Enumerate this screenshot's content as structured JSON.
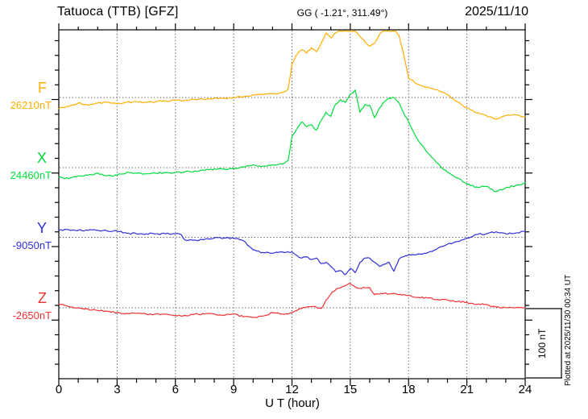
{
  "header": {
    "title": "Tatuoca (TTB)  [GFZ]",
    "coords": "GG ( -1.21°, 311.49°)",
    "date": "2025/11/10"
  },
  "x_axis": {
    "label": "U T (hour)"
  },
  "scale_bar": {
    "label": "100 nT",
    "span_nT": 100
  },
  "plotted_at": "Plotted at 2025/11/30 00:34 UT",
  "chart_data": {
    "type": "line",
    "title": "Tatuoca (TTB) [GFZ] magnetogram 2025/11/10",
    "xlabel": "U T (hour)",
    "x_range": [
      0,
      24
    ],
    "x_ticks": [
      {
        "t": 0,
        "label": "0"
      },
      {
        "t": 3,
        "label": "3"
      },
      {
        "t": 6,
        "label": "6"
      },
      {
        "t": 9,
        "label": "9"
      },
      {
        "t": 12,
        "label": "12"
      },
      {
        "t": 15,
        "label": "15"
      },
      {
        "t": 18,
        "label": "18"
      },
      {
        "t": 21,
        "label": "21"
      },
      {
        "t": 24,
        "label": "24"
      }
    ],
    "grid": "dotted vertical lines every 3 h; dotted horizontal line at each series baseline",
    "legend_position": "left margin, one colored letter + baseline value per trace",
    "scale_bar_nT": 100,
    "series": [
      {
        "name": "F",
        "color": "#FFAD00",
        "baseline_nT": 26210,
        "baseline_label": "26210nT",
        "points": [
          [
            0,
            26194
          ],
          [
            0.5,
            26197
          ],
          [
            1,
            26202
          ],
          [
            1.5,
            26199
          ],
          [
            2,
            26202
          ],
          [
            2.5,
            26203
          ],
          [
            3,
            26201
          ],
          [
            3.5,
            26203
          ],
          [
            4,
            26204
          ],
          [
            4.5,
            26203
          ],
          [
            5,
            26204
          ],
          [
            5.5,
            26205
          ],
          [
            6,
            26206
          ],
          [
            6.5,
            26206
          ],
          [
            7,
            26207
          ],
          [
            7.5,
            26207
          ],
          [
            8,
            26209
          ],
          [
            8.5,
            26209
          ],
          [
            9,
            26210
          ],
          [
            9.5,
            26211
          ],
          [
            10,
            26214
          ],
          [
            10.5,
            26214
          ],
          [
            11,
            26215
          ],
          [
            11.5,
            26217
          ],
          [
            11.8,
            26222
          ],
          [
            12,
            26258
          ],
          [
            12.25,
            26272
          ],
          [
            12.5,
            26279
          ],
          [
            12.75,
            26274
          ],
          [
            13,
            26282
          ],
          [
            13.25,
            26276
          ],
          [
            13.5,
            26288
          ],
          [
            13.75,
            26303
          ],
          [
            14,
            26296
          ],
          [
            14.25,
            26303
          ],
          [
            14.5,
            26309
          ],
          [
            14.75,
            26312
          ],
          [
            15,
            26314
          ],
          [
            15.25,
            26308
          ],
          [
            15.5,
            26298
          ],
          [
            15.75,
            26291
          ],
          [
            16,
            26284
          ],
          [
            16.25,
            26288
          ],
          [
            16.5,
            26301
          ],
          [
            16.75,
            26307
          ],
          [
            17,
            26311
          ],
          [
            17.25,
            26309
          ],
          [
            17.5,
            26300
          ],
          [
            17.75,
            26272
          ],
          [
            18,
            26238
          ],
          [
            18.5,
            26229
          ],
          [
            19,
            26225
          ],
          [
            19.5,
            26221
          ],
          [
            20,
            26214
          ],
          [
            20.5,
            26204
          ],
          [
            21,
            26195
          ],
          [
            21.5,
            26188
          ],
          [
            22,
            26184
          ],
          [
            22.5,
            26179
          ],
          [
            23,
            26184
          ],
          [
            23.5,
            26185
          ],
          [
            24,
            26182
          ]
        ]
      },
      {
        "name": "X",
        "color": "#00DC3C",
        "baseline_nT": 24460,
        "baseline_label": "24460nT",
        "points": [
          [
            0,
            24446
          ],
          [
            0.5,
            24444
          ],
          [
            1,
            24448
          ],
          [
            1.5,
            24449
          ],
          [
            2,
            24452
          ],
          [
            2.5,
            24448
          ],
          [
            3,
            24449
          ],
          [
            3.5,
            24453
          ],
          [
            4,
            24452
          ],
          [
            4.5,
            24451
          ],
          [
            5,
            24452
          ],
          [
            5.5,
            24453
          ],
          [
            6,
            24453
          ],
          [
            6.5,
            24454
          ],
          [
            7,
            24455
          ],
          [
            7.5,
            24456
          ],
          [
            8,
            24458
          ],
          [
            8.5,
            24458
          ],
          [
            9,
            24459
          ],
          [
            9.5,
            24461
          ],
          [
            10,
            24464
          ],
          [
            10.5,
            24462
          ],
          [
            11,
            24464
          ],
          [
            11.5,
            24465
          ],
          [
            11.8,
            24470
          ],
          [
            12,
            24505
          ],
          [
            12.25,
            24516
          ],
          [
            12.5,
            24526
          ],
          [
            12.75,
            24519
          ],
          [
            13,
            24522
          ],
          [
            13.25,
            24514
          ],
          [
            13.5,
            24528
          ],
          [
            13.75,
            24540
          ],
          [
            14,
            24534
          ],
          [
            14.25,
            24552
          ],
          [
            14.5,
            24558
          ],
          [
            14.75,
            24554
          ],
          [
            15,
            24566
          ],
          [
            15.25,
            24572
          ],
          [
            15.5,
            24540
          ],
          [
            15.75,
            24551
          ],
          [
            16,
            24550
          ],
          [
            16.25,
            24532
          ],
          [
            16.5,
            24546
          ],
          [
            16.75,
            24555
          ],
          [
            17,
            24560
          ],
          [
            17.25,
            24561
          ],
          [
            17.5,
            24554
          ],
          [
            17.75,
            24539
          ],
          [
            18,
            24526
          ],
          [
            18.5,
            24499
          ],
          [
            19,
            24481
          ],
          [
            19.5,
            24466
          ],
          [
            20,
            24453
          ],
          [
            20.5,
            24445
          ],
          [
            21,
            24436
          ],
          [
            21.5,
            24432
          ],
          [
            22,
            24433
          ],
          [
            22.5,
            24425
          ],
          [
            23,
            24431
          ],
          [
            23.5,
            24434
          ],
          [
            24,
            24438
          ]
        ]
      },
      {
        "name": "Y",
        "color": "#2E2EDC",
        "baseline_nT": -9050,
        "baseline_label": "-9050nT",
        "points": [
          [
            0,
            -9040
          ],
          [
            0.5,
            -9039
          ],
          [
            1,
            -9040
          ],
          [
            1.5,
            -9040
          ],
          [
            2,
            -9040
          ],
          [
            2.5,
            -9041
          ],
          [
            3,
            -9041
          ],
          [
            3.5,
            -9044
          ],
          [
            4,
            -9045
          ],
          [
            4.5,
            -9045
          ],
          [
            5,
            -9045
          ],
          [
            5.5,
            -9045
          ],
          [
            6,
            -9045
          ],
          [
            6.3,
            -9046
          ],
          [
            6.5,
            -9054
          ],
          [
            7,
            -9054
          ],
          [
            7.5,
            -9053
          ],
          [
            8,
            -9051
          ],
          [
            8.5,
            -9051
          ],
          [
            9,
            -9051
          ],
          [
            9.5,
            -9055
          ],
          [
            10,
            -9068
          ],
          [
            10.5,
            -9072
          ],
          [
            11,
            -9073
          ],
          [
            11.5,
            -9071
          ],
          [
            12,
            -9071
          ],
          [
            12.25,
            -9076
          ],
          [
            12.5,
            -9080
          ],
          [
            12.75,
            -9078
          ],
          [
            13,
            -9082
          ],
          [
            13.25,
            -9080
          ],
          [
            13.5,
            -9088
          ],
          [
            13.75,
            -9086
          ],
          [
            14,
            -9092
          ],
          [
            14.25,
            -9100
          ],
          [
            14.5,
            -9098
          ],
          [
            14.75,
            -9104
          ],
          [
            15,
            -9095
          ],
          [
            15.25,
            -9101
          ],
          [
            15.5,
            -9086
          ],
          [
            15.75,
            -9080
          ],
          [
            16,
            -9080
          ],
          [
            16.25,
            -9086
          ],
          [
            16.5,
            -9092
          ],
          [
            16.75,
            -9089
          ],
          [
            17,
            -9086
          ],
          [
            17.25,
            -9099
          ],
          [
            17.5,
            -9082
          ],
          [
            17.75,
            -9078
          ],
          [
            18,
            -9075
          ],
          [
            18.5,
            -9074
          ],
          [
            19,
            -9072
          ],
          [
            19.5,
            -9066
          ],
          [
            20,
            -9060
          ],
          [
            20.5,
            -9056
          ],
          [
            21,
            -9051
          ],
          [
            21.5,
            -9046
          ],
          [
            22,
            -9045
          ],
          [
            22.5,
            -9042
          ],
          [
            23,
            -9045
          ],
          [
            23.5,
            -9044
          ],
          [
            24,
            -9041
          ]
        ]
      },
      {
        "name": "Z",
        "color": "#F23030",
        "baseline_nT": -2650,
        "baseline_label": "-2650nT",
        "points": [
          [
            0,
            -2645
          ],
          [
            0.5,
            -2648
          ],
          [
            1,
            -2650
          ],
          [
            1.5,
            -2652
          ],
          [
            2,
            -2654
          ],
          [
            2.5,
            -2655
          ],
          [
            3,
            -2657
          ],
          [
            3.5,
            -2658
          ],
          [
            4,
            -2658
          ],
          [
            4.5,
            -2659
          ],
          [
            5,
            -2659
          ],
          [
            5.5,
            -2659
          ],
          [
            6,
            -2661
          ],
          [
            6.5,
            -2661
          ],
          [
            7,
            -2659
          ],
          [
            7.5,
            -2659
          ],
          [
            8,
            -2659
          ],
          [
            8.5,
            -2661
          ],
          [
            9,
            -2659
          ],
          [
            9.5,
            -2663
          ],
          [
            10,
            -2664
          ],
          [
            10.5,
            -2662
          ],
          [
            11,
            -2657
          ],
          [
            11.5,
            -2659
          ],
          [
            12,
            -2657
          ],
          [
            12.25,
            -2654
          ],
          [
            12.5,
            -2651
          ],
          [
            12.75,
            -2649
          ],
          [
            13,
            -2648
          ],
          [
            13.25,
            -2649
          ],
          [
            13.5,
            -2651
          ],
          [
            13.75,
            -2639
          ],
          [
            14,
            -2630
          ],
          [
            14.25,
            -2624
          ],
          [
            14.5,
            -2621
          ],
          [
            14.75,
            -2618
          ],
          [
            15,
            -2615
          ],
          [
            15.25,
            -2620
          ],
          [
            15.5,
            -2622
          ],
          [
            15.75,
            -2621
          ],
          [
            16,
            -2621
          ],
          [
            16.25,
            -2631
          ],
          [
            16.5,
            -2630
          ],
          [
            16.75,
            -2629
          ],
          [
            17,
            -2630
          ],
          [
            17.25,
            -2629
          ],
          [
            17.5,
            -2631
          ],
          [
            17.75,
            -2631
          ],
          [
            18,
            -2632
          ],
          [
            18.5,
            -2635
          ],
          [
            19,
            -2636
          ],
          [
            19.5,
            -2638
          ],
          [
            20,
            -2639
          ],
          [
            20.5,
            -2641
          ],
          [
            21,
            -2642
          ],
          [
            21.5,
            -2645
          ],
          [
            22,
            -2645
          ],
          [
            22.5,
            -2649
          ],
          [
            23,
            -2650
          ],
          [
            23.5,
            -2650
          ],
          [
            24,
            -2650
          ]
        ]
      }
    ]
  }
}
